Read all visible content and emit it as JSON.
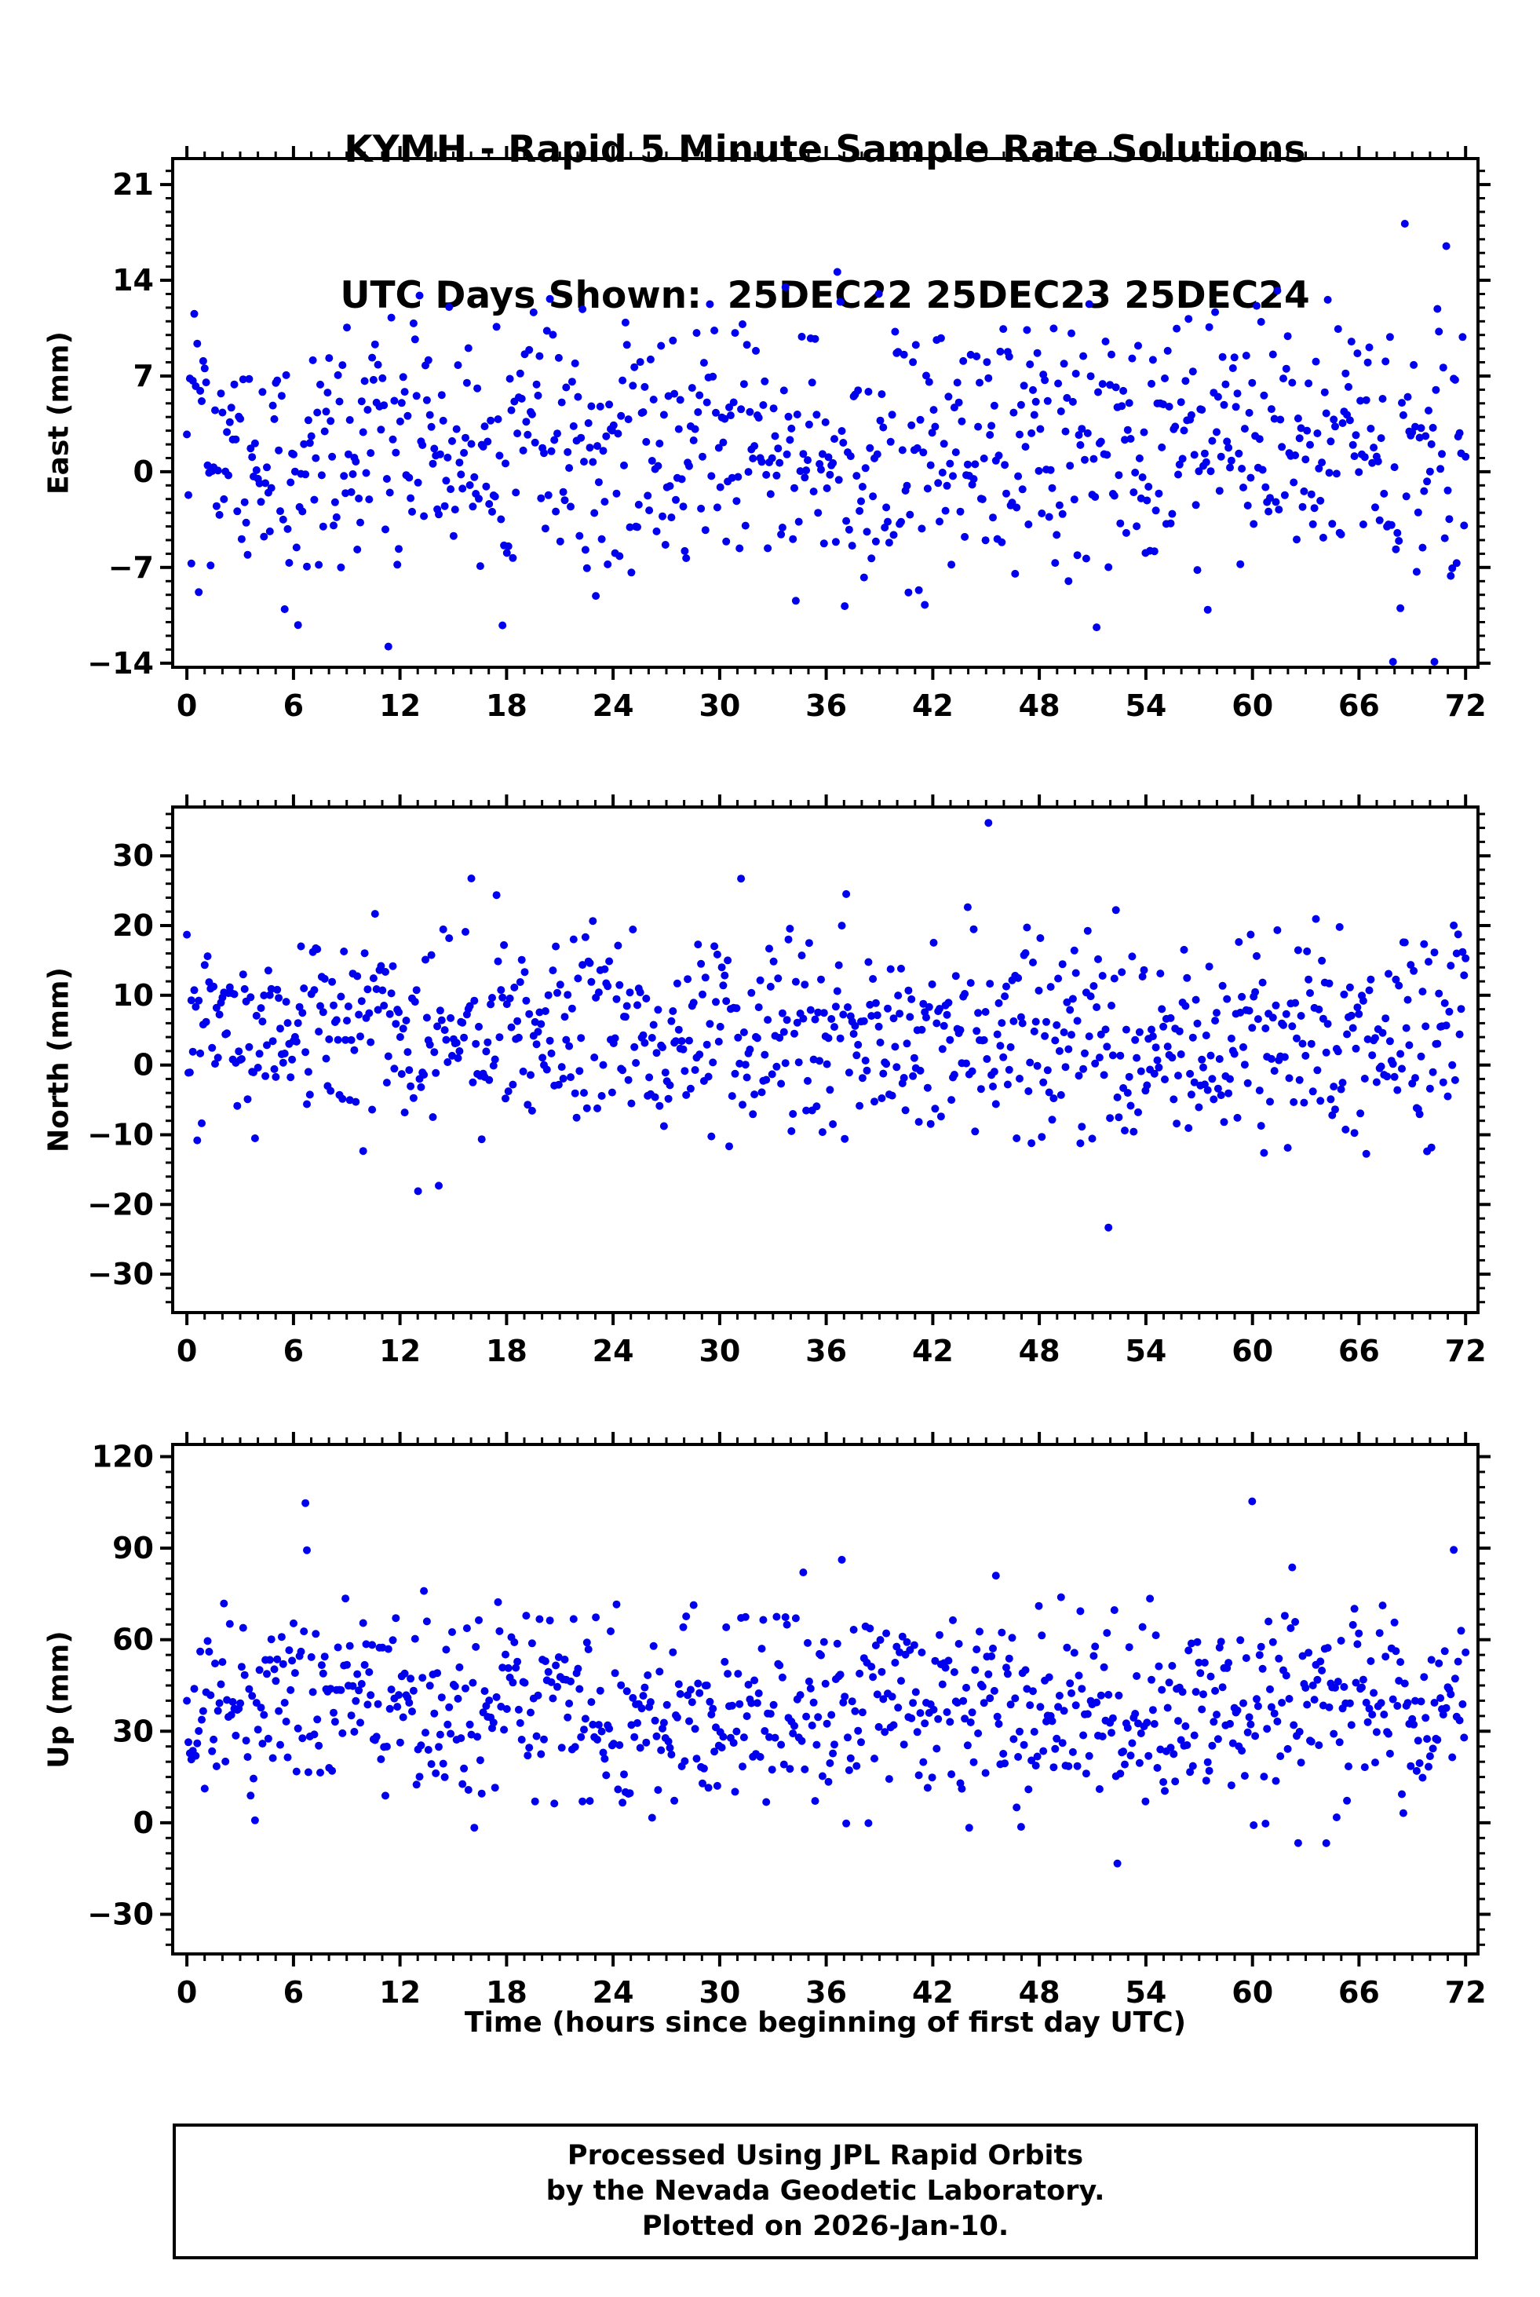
{
  "title": {
    "line1": "KYMH - Rapid 5 Minute Sample Rate Solutions",
    "line2": "UTC Days Shown:  25DEC22 25DEC23 25DEC24"
  },
  "footer": {
    "line1": "Processed Using JPL Rapid Orbits",
    "line2": "by the Nevada Geodetic Laboratory.",
    "line3": "Plotted on 2026-Jan-10."
  },
  "colors": {
    "dot": "#0000ee",
    "frame": "#000000",
    "background": "#ffffff"
  },
  "chart_data": {
    "type": "scatter",
    "title": "KYMH - Rapid 5 Minute Sample Rate Solutions",
    "subtitle": "UTC Days Shown:  25DEC22 25DEC23 25DEC24",
    "xlabel": "Time (hours since beginning of first day UTC)",
    "grid": false,
    "legend": "none",
    "x": {
      "lim": [
        -0.8,
        72.7
      ],
      "ticks": [
        0,
        6,
        12,
        18,
        24,
        30,
        36,
        42,
        48,
        54,
        60,
        66,
        72
      ],
      "minor_step": 1,
      "sampling": "5 minute solutions over 3 UTC days (points at regular intervals, 0 to 72 hours)"
    },
    "marker": {
      "color": "#0000ee",
      "radius": 5
    },
    "panels": [
      {
        "name": "east",
        "ylabel": "East (mm)",
        "ylim": [
          -14.3,
          22.9
        ],
        "yticks": [
          21,
          14,
          7,
          0,
          -7,
          -14
        ],
        "minor_step": 1,
        "n_points": 864,
        "mean": 1.8,
        "std": 5.0,
        "clip": [
          -13.9,
          22.6
        ],
        "outlier_prob": 0.008,
        "outlier_mag": [
          5,
          16
        ],
        "seed": 101
      },
      {
        "name": "north",
        "ylabel": "North (mm)",
        "ylim": [
          -35.5,
          37.0
        ],
        "yticks": [
          30,
          20,
          10,
          0,
          -10,
          -20,
          -30
        ],
        "minor_step": 2,
        "n_points": 864,
        "mean": 4.5,
        "std": 7.2,
        "clip": [
          -34.0,
          35.8
        ],
        "outlier_prob": 0.006,
        "outlier_mag": [
          6,
          20
        ],
        "seed": 202
      },
      {
        "name": "up",
        "ylabel": "Up (mm)",
        "ylim": [
          -43.0,
          124.0
        ],
        "yticks": [
          120,
          90,
          60,
          30,
          0,
          -30
        ],
        "minor_step": 5,
        "n_points": 864,
        "mean": 38.0,
        "std": 16.0,
        "clip": [
          -33.0,
          121.0
        ],
        "outlier_prob": 0.01,
        "outlier_mag": [
          15,
          60
        ],
        "seed": 303
      }
    ]
  }
}
